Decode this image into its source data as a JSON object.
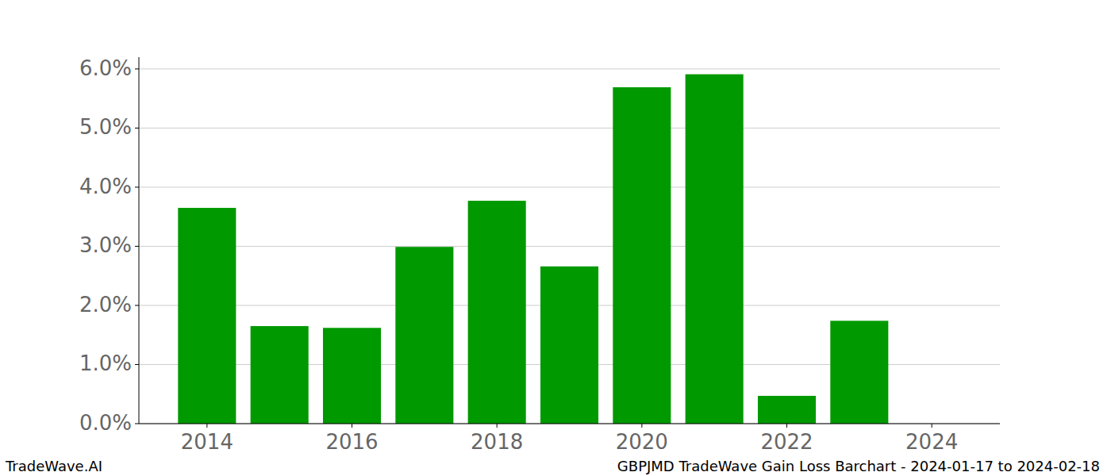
{
  "chart_data": {
    "type": "bar",
    "title": "GBPJMD TradeWave Gain Loss Barchart - 2024-01-17 to 2024-02-18",
    "source": "TradeWave.AI",
    "x": [
      2014,
      2015,
      2016,
      2017,
      2018,
      2019,
      2020,
      2021,
      2022,
      2023,
      2024
    ],
    "values": [
      3.65,
      1.65,
      1.62,
      2.99,
      3.77,
      2.66,
      5.69,
      5.91,
      0.47,
      1.74,
      0
    ],
    "color": "#009900",
    "xlim": [
      2013.06,
      2024.94
    ],
    "xticks": [
      2014,
      2016,
      2018,
      2020,
      2022,
      2024
    ],
    "ylim": [
      0,
      6.2
    ],
    "yticks": [
      {
        "value": 0,
        "label": "0.0%"
      },
      {
        "value": 1,
        "label": "1.0%"
      },
      {
        "value": 2,
        "label": "2.0%"
      },
      {
        "value": 3,
        "label": "3.0%"
      },
      {
        "value": 4,
        "label": "4.0%"
      },
      {
        "value": 5,
        "label": "5.0%"
      },
      {
        "value": 6,
        "label": "6.0%"
      }
    ],
    "grid": true
  }
}
